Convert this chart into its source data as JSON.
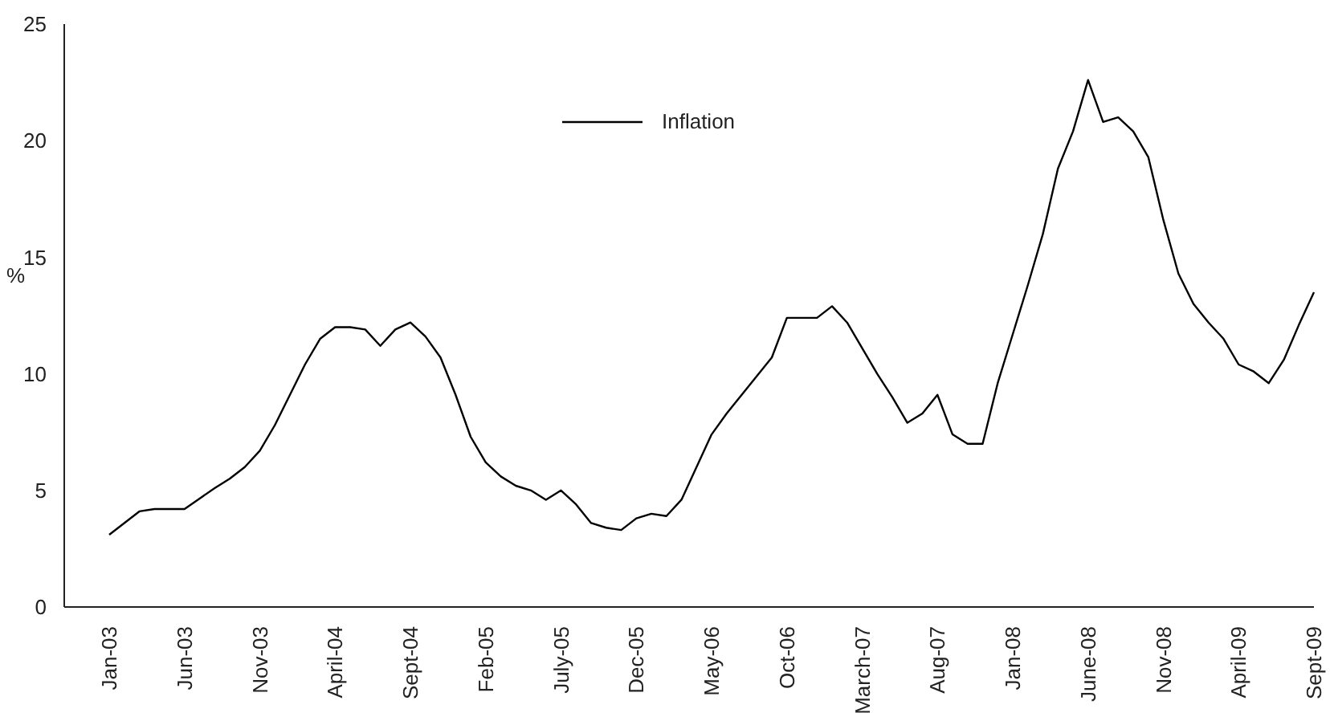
{
  "chart_data": {
    "type": "line",
    "ylabel": "%",
    "legend": "top",
    "grid": false,
    "marker": "none",
    "line_style": "solid",
    "categories": [
      "Jan-03",
      null,
      null,
      null,
      null,
      "Jun-03",
      null,
      null,
      null,
      null,
      "Nov-03",
      null,
      null,
      null,
      null,
      "April-04",
      null,
      null,
      null,
      null,
      "Sept-04",
      null,
      null,
      null,
      null,
      "Feb-05",
      null,
      null,
      null,
      null,
      "July-05",
      null,
      null,
      null,
      null,
      "Dec-05",
      null,
      null,
      null,
      null,
      "May-06",
      null,
      null,
      null,
      null,
      "Oct-06",
      null,
      null,
      null,
      null,
      "March-07",
      null,
      null,
      null,
      null,
      "Aug-07",
      null,
      null,
      null,
      null,
      "Jan-08",
      null,
      null,
      null,
      null,
      "June-08",
      null,
      null,
      null,
      null,
      "Nov-08",
      null,
      null,
      null,
      null,
      "April-09",
      null,
      null,
      null,
      null,
      "Sept-09"
    ],
    "series": [
      {
        "name": "Inflation",
        "color": "#000000",
        "values": [
          3.1,
          3.6,
          4.1,
          4.2,
          4.2,
          4.2,
          4.65,
          5.1,
          5.5,
          6.0,
          6.7,
          7.8,
          9.1,
          10.4,
          11.5,
          12.0,
          12.0,
          11.9,
          11.2,
          11.9,
          12.2,
          11.6,
          10.7,
          9.1,
          7.3,
          6.2,
          5.6,
          5.2,
          5.0,
          4.6,
          5.0,
          4.4,
          3.6,
          3.4,
          3.3,
          3.8,
          4.0,
          3.9,
          4.6,
          6.0,
          7.4,
          8.3,
          9.1,
          9.9,
          10.7,
          12.4,
          12.4,
          12.4,
          12.9,
          12.2,
          11.1,
          10.0,
          9.0,
          7.9,
          8.3,
          9.1,
          7.4,
          7.0,
          7.0,
          9.6,
          11.7,
          13.8,
          16.0,
          18.8,
          20.4,
          22.6,
          20.8,
          21.0,
          20.4,
          19.3,
          16.6,
          14.3,
          13.0,
          12.2,
          11.5,
          10.4,
          10.1,
          9.6,
          10.6,
          12.1,
          13.5
        ]
      }
    ],
    "ylim": [
      0,
      25
    ],
    "yticks": [
      0,
      5,
      10,
      15,
      20,
      25
    ]
  }
}
